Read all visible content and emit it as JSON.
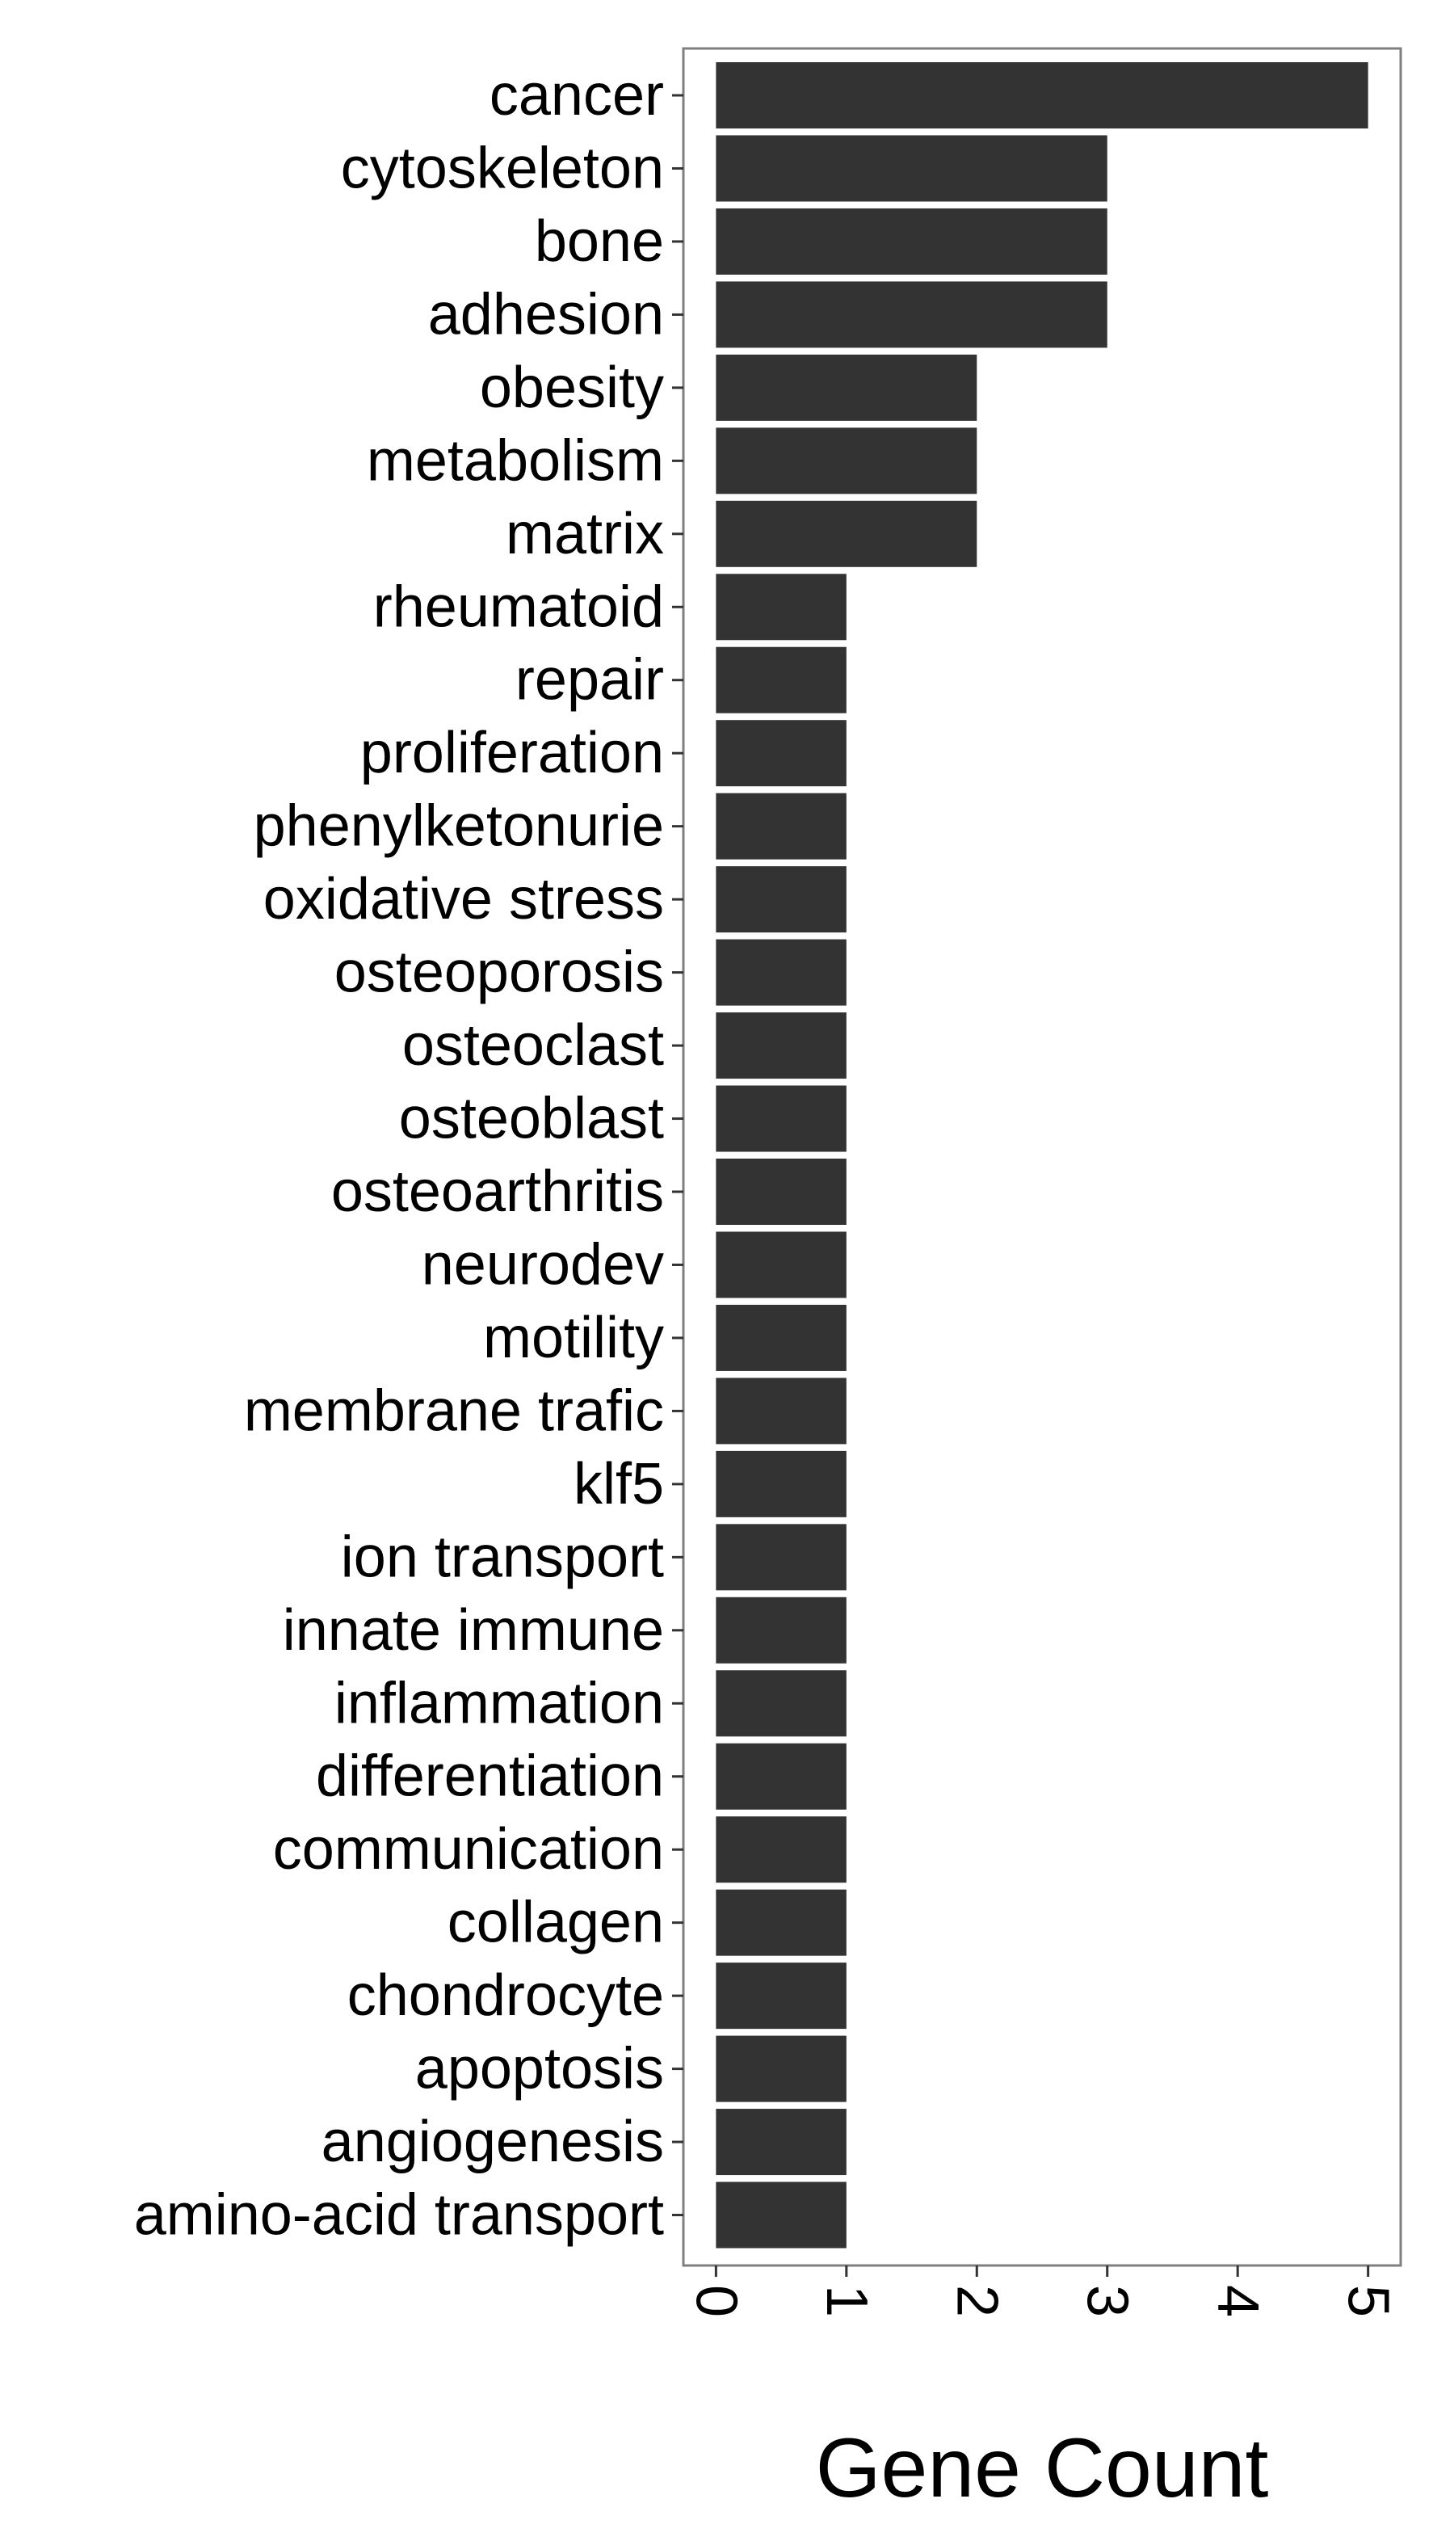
{
  "chart_data": {
    "type": "bar",
    "orientation": "horizontal",
    "categories": [
      "cancer",
      "cytoskeleton",
      "bone",
      "adhesion",
      "obesity",
      "metabolism",
      "matrix",
      "rheumatoid",
      "repair",
      "proliferation",
      "phenylketonurie",
      "oxidative stress",
      "osteoporosis",
      "osteoclast",
      "osteoblast",
      "osteoarthritis",
      "neurodev",
      "motility",
      "membrane trafic",
      "klf5",
      "ion transport",
      "innate immune",
      "inflammation",
      "differentiation",
      "communication",
      "collagen",
      "chondrocyte",
      "apoptosis",
      "angiogenesis",
      "amino-acid transport"
    ],
    "values": [
      5,
      3,
      3,
      3,
      2,
      2,
      2,
      1,
      1,
      1,
      1,
      1,
      1,
      1,
      1,
      1,
      1,
      1,
      1,
      1,
      1,
      1,
      1,
      1,
      1,
      1,
      1,
      1,
      1,
      1
    ],
    "xlabel": "Gene Count",
    "ylabel": "",
    "xlim": [
      -0.25,
      5.25
    ],
    "ticks": [
      "0",
      "1",
      "2",
      "3",
      "4",
      "5"
    ],
    "tick_rotation": "90 degrees",
    "grid": false,
    "bar_color": "#333333",
    "panel_border_color": "#7f7f7f"
  }
}
